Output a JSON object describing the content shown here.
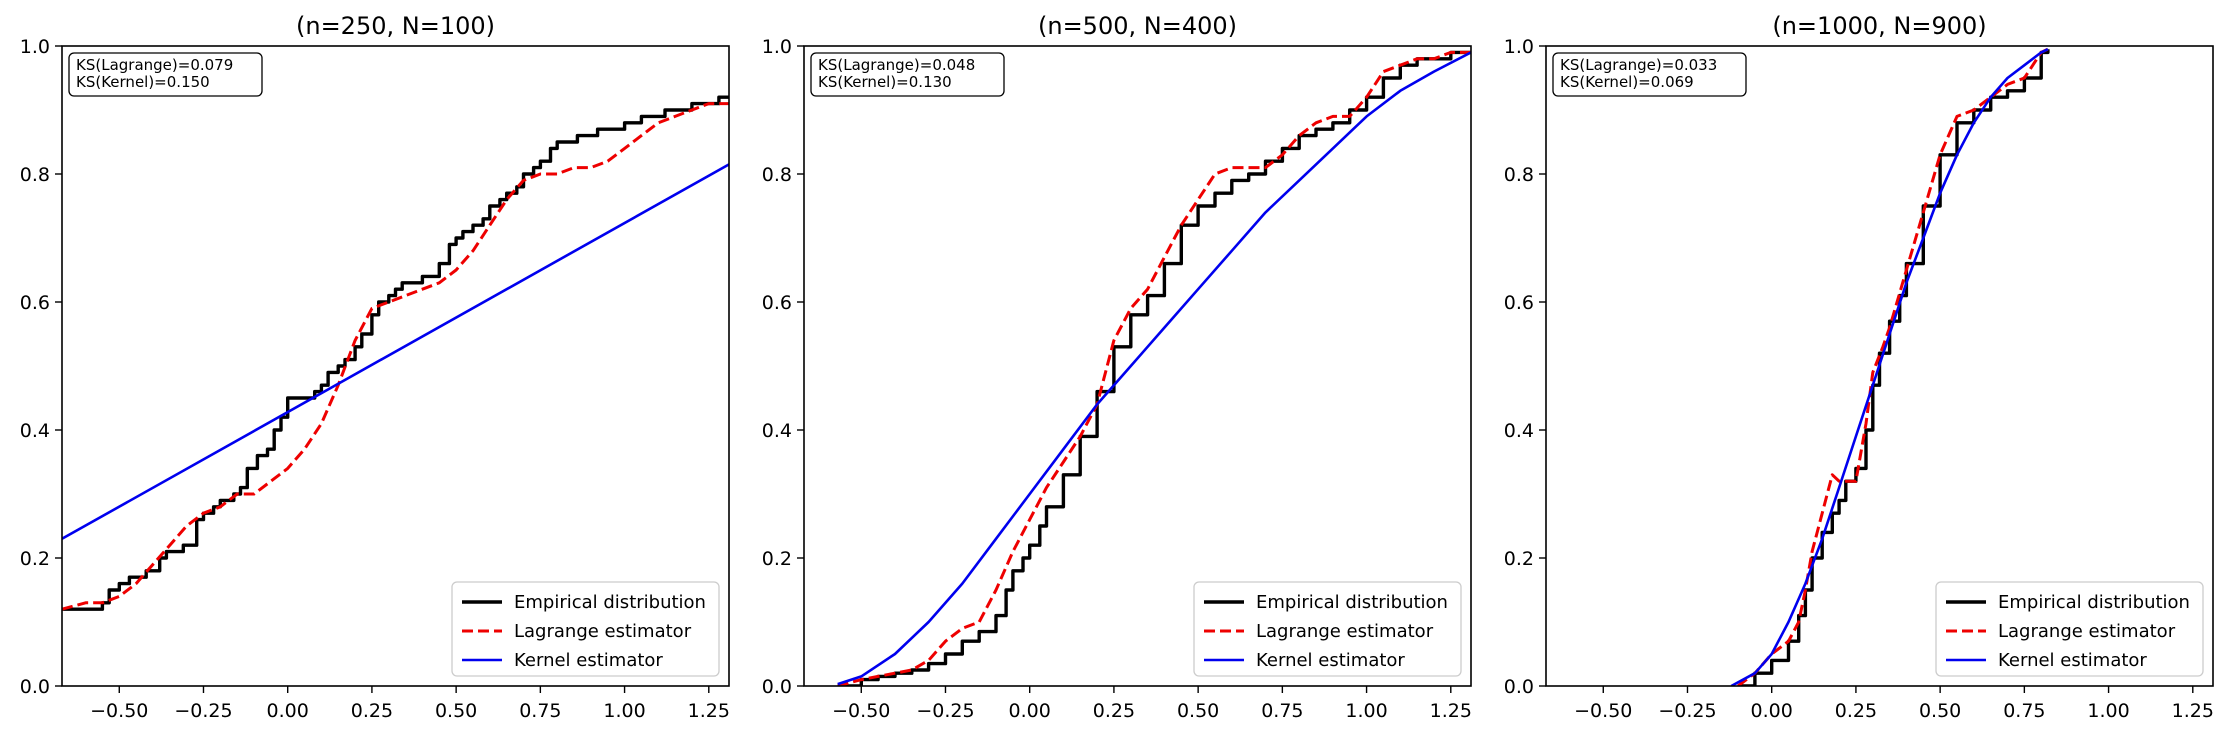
{
  "figure": {
    "panels": 3
  },
  "chart_data": [
    {
      "type": "line",
      "title": "(n=250, N=100)",
      "xlim": [
        -0.67,
        1.31
      ],
      "ylim": [
        0.0,
        1.0
      ],
      "xticks": [
        -0.5,
        -0.25,
        0.0,
        0.25,
        0.5,
        0.75,
        1.0,
        1.25
      ],
      "xtick_labels": [
        "−0.50",
        "−0.25",
        "0.00",
        "0.25",
        "0.50",
        "0.75",
        "1.00",
        "1.25"
      ],
      "yticks": [
        0.0,
        0.2,
        0.4,
        0.6,
        0.8,
        1.0
      ],
      "ytick_labels": [
        "0.0",
        "0.2",
        "0.4",
        "0.6",
        "0.8",
        "1.0"
      ],
      "ks": [
        "KS(Lagrange)=0.079",
        "KS(Kernel)=0.150"
      ],
      "legend_position": "lower-right",
      "series": [
        {
          "name": "Empirical distribution",
          "style": "step",
          "color": "#000000",
          "x": [
            -0.67,
            -0.55,
            -0.53,
            -0.5,
            -0.47,
            -0.45,
            -0.42,
            -0.38,
            -0.36,
            -0.34,
            -0.31,
            -0.27,
            -0.25,
            -0.22,
            -0.2,
            -0.16,
            -0.14,
            -0.12,
            -0.09,
            -0.06,
            -0.04,
            -0.02,
            0.0,
            0.02,
            0.05,
            0.08,
            0.1,
            0.12,
            0.15,
            0.17,
            0.2,
            0.22,
            0.25,
            0.27,
            0.3,
            0.32,
            0.34,
            0.36,
            0.4,
            0.45,
            0.48,
            0.5,
            0.52,
            0.55,
            0.58,
            0.6,
            0.63,
            0.65,
            0.68,
            0.7,
            0.73,
            0.75,
            0.78,
            0.8,
            0.83,
            0.86,
            0.88,
            0.92,
            0.95,
            1.0,
            1.02,
            1.05,
            1.08,
            1.12,
            1.15,
            1.2,
            1.22,
            1.25,
            1.28,
            1.31
          ],
          "y": [
            0.12,
            0.13,
            0.15,
            0.16,
            0.17,
            0.17,
            0.18,
            0.2,
            0.21,
            0.21,
            0.22,
            0.26,
            0.27,
            0.28,
            0.29,
            0.3,
            0.31,
            0.34,
            0.36,
            0.37,
            0.4,
            0.42,
            0.45,
            0.45,
            0.45,
            0.46,
            0.47,
            0.49,
            0.5,
            0.51,
            0.53,
            0.55,
            0.58,
            0.6,
            0.61,
            0.62,
            0.63,
            0.63,
            0.64,
            0.66,
            0.69,
            0.7,
            0.71,
            0.72,
            0.73,
            0.75,
            0.76,
            0.77,
            0.78,
            0.8,
            0.81,
            0.82,
            0.84,
            0.85,
            0.85,
            0.86,
            0.86,
            0.87,
            0.87,
            0.88,
            0.88,
            0.89,
            0.89,
            0.9,
            0.9,
            0.91,
            0.91,
            0.91,
            0.92,
            0.92
          ]
        },
        {
          "name": "Lagrange estimator",
          "style": "dashed",
          "color": "#ee0000",
          "x": [
            -0.67,
            -0.6,
            -0.55,
            -0.5,
            -0.45,
            -0.4,
            -0.35,
            -0.3,
            -0.25,
            -0.2,
            -0.15,
            -0.1,
            -0.05,
            0.0,
            0.05,
            0.1,
            0.15,
            0.2,
            0.25,
            0.3,
            0.35,
            0.4,
            0.45,
            0.5,
            0.55,
            0.6,
            0.65,
            0.7,
            0.75,
            0.8,
            0.85,
            0.9,
            0.95,
            1.0,
            1.05,
            1.1,
            1.15,
            1.2,
            1.25,
            1.31
          ],
          "y": [
            0.12,
            0.13,
            0.13,
            0.14,
            0.16,
            0.19,
            0.22,
            0.25,
            0.27,
            0.28,
            0.3,
            0.3,
            0.32,
            0.34,
            0.37,
            0.41,
            0.47,
            0.54,
            0.59,
            0.6,
            0.61,
            0.62,
            0.63,
            0.65,
            0.68,
            0.72,
            0.76,
            0.79,
            0.8,
            0.8,
            0.81,
            0.81,
            0.82,
            0.84,
            0.86,
            0.88,
            0.89,
            0.9,
            0.91,
            0.91
          ]
        },
        {
          "name": "Kernel estimator",
          "style": "solid",
          "color": "#0000ee",
          "x": [
            -0.67,
            1.31
          ],
          "y": [
            0.23,
            0.815
          ]
        }
      ]
    },
    {
      "type": "line",
      "title": "(n=500, N=400)",
      "xlim": [
        -0.67,
        1.31
      ],
      "ylim": [
        0.0,
        1.0
      ],
      "xticks": [
        -0.5,
        -0.25,
        0.0,
        0.25,
        0.5,
        0.75,
        1.0,
        1.25
      ],
      "xtick_labels": [
        "−0.50",
        "−0.25",
        "0.00",
        "0.25",
        "0.50",
        "0.75",
        "1.00",
        "1.25"
      ],
      "yticks": [
        0.0,
        0.2,
        0.4,
        0.6,
        0.8,
        1.0
      ],
      "ytick_labels": [
        "0.0",
        "0.2",
        "0.4",
        "0.6",
        "0.8",
        "1.0"
      ],
      "ks": [
        "KS(Lagrange)=0.048",
        "KS(Kernel)=0.130"
      ],
      "legend_position": "lower-right",
      "series": [
        {
          "name": "Empirical distribution",
          "style": "step",
          "color": "#000000",
          "x": [
            -0.57,
            -0.5,
            -0.45,
            -0.4,
            -0.35,
            -0.3,
            -0.25,
            -0.2,
            -0.15,
            -0.1,
            -0.07,
            -0.05,
            -0.02,
            0.0,
            0.03,
            0.05,
            0.1,
            0.15,
            0.2,
            0.25,
            0.3,
            0.35,
            0.4,
            0.45,
            0.5,
            0.55,
            0.6,
            0.65,
            0.7,
            0.75,
            0.8,
            0.85,
            0.9,
            0.95,
            1.0,
            1.05,
            1.1,
            1.15,
            1.2,
            1.25,
            1.31
          ],
          "y": [
            0.0,
            0.01,
            0.015,
            0.02,
            0.025,
            0.035,
            0.05,
            0.07,
            0.085,
            0.11,
            0.15,
            0.18,
            0.2,
            0.22,
            0.25,
            0.28,
            0.33,
            0.39,
            0.46,
            0.53,
            0.58,
            0.61,
            0.66,
            0.72,
            0.75,
            0.77,
            0.79,
            0.8,
            0.82,
            0.84,
            0.86,
            0.87,
            0.88,
            0.9,
            0.92,
            0.95,
            0.97,
            0.98,
            0.98,
            0.99,
            0.99
          ]
        },
        {
          "name": "Lagrange estimator",
          "style": "dashed",
          "color": "#ee0000",
          "x": [
            -0.57,
            -0.5,
            -0.45,
            -0.4,
            -0.35,
            -0.3,
            -0.25,
            -0.2,
            -0.15,
            -0.1,
            -0.05,
            0.0,
            0.05,
            0.1,
            0.15,
            0.2,
            0.25,
            0.3,
            0.35,
            0.4,
            0.45,
            0.5,
            0.55,
            0.6,
            0.65,
            0.7,
            0.75,
            0.8,
            0.85,
            0.9,
            0.95,
            1.0,
            1.05,
            1.1,
            1.15,
            1.2,
            1.25,
            1.31
          ],
          "y": [
            0.0,
            0.01,
            0.015,
            0.02,
            0.025,
            0.04,
            0.07,
            0.09,
            0.1,
            0.15,
            0.21,
            0.26,
            0.31,
            0.35,
            0.39,
            0.44,
            0.54,
            0.59,
            0.62,
            0.67,
            0.72,
            0.76,
            0.8,
            0.81,
            0.81,
            0.81,
            0.83,
            0.86,
            0.88,
            0.89,
            0.89,
            0.92,
            0.96,
            0.97,
            0.98,
            0.98,
            0.99,
            0.99
          ]
        },
        {
          "name": "Kernel estimator",
          "style": "solid",
          "color": "#0000ee",
          "x": [
            -0.57,
            -0.5,
            -0.4,
            -0.3,
            -0.2,
            -0.1,
            0.0,
            0.1,
            0.2,
            0.3,
            0.4,
            0.5,
            0.6,
            0.7,
            0.8,
            0.9,
            1.0,
            1.1,
            1.2,
            1.31
          ],
          "y": [
            0.003,
            0.015,
            0.05,
            0.1,
            0.16,
            0.23,
            0.3,
            0.37,
            0.44,
            0.5,
            0.56,
            0.62,
            0.68,
            0.74,
            0.79,
            0.84,
            0.89,
            0.93,
            0.96,
            0.99
          ]
        }
      ]
    },
    {
      "type": "line",
      "title": "(n=1000, N=900)",
      "xlim": [
        -0.67,
        1.31
      ],
      "ylim": [
        0.0,
        1.0
      ],
      "xticks": [
        -0.5,
        -0.25,
        0.0,
        0.25,
        0.5,
        0.75,
        1.0,
        1.25
      ],
      "xtick_labels": [
        "−0.50",
        "−0.25",
        "0.00",
        "0.25",
        "0.50",
        "0.75",
        "1.00",
        "1.25"
      ],
      "yticks": [
        0.0,
        0.2,
        0.4,
        0.6,
        0.8,
        1.0
      ],
      "ytick_labels": [
        "0.0",
        "0.2",
        "0.4",
        "0.6",
        "0.8",
        "1.0"
      ],
      "ks": [
        "KS(Lagrange)=0.033",
        "KS(Kernel)=0.069"
      ],
      "legend_position": "lower-right",
      "series": [
        {
          "name": "Empirical distribution",
          "style": "step",
          "color": "#000000",
          "x": [
            -0.1,
            -0.05,
            0.0,
            0.05,
            0.08,
            0.1,
            0.12,
            0.15,
            0.18,
            0.2,
            0.22,
            0.25,
            0.28,
            0.3,
            0.32,
            0.35,
            0.38,
            0.4,
            0.45,
            0.5,
            0.55,
            0.6,
            0.65,
            0.7,
            0.75,
            0.8,
            0.82
          ],
          "y": [
            0.0,
            0.02,
            0.04,
            0.07,
            0.11,
            0.15,
            0.2,
            0.24,
            0.27,
            0.29,
            0.32,
            0.34,
            0.4,
            0.47,
            0.52,
            0.57,
            0.61,
            0.66,
            0.75,
            0.83,
            0.88,
            0.9,
            0.92,
            0.93,
            0.95,
            0.99,
            0.995
          ]
        },
        {
          "name": "Lagrange estimator",
          "style": "dashed",
          "color": "#ee0000",
          "x": [
            -0.1,
            -0.05,
            0.0,
            0.05,
            0.08,
            0.1,
            0.12,
            0.15,
            0.18,
            0.2,
            0.25,
            0.28,
            0.3,
            0.33,
            0.35,
            0.4,
            0.45,
            0.5,
            0.55,
            0.6,
            0.65,
            0.7,
            0.75,
            0.8,
            0.82
          ],
          "y": [
            0.0,
            0.02,
            0.05,
            0.07,
            0.1,
            0.15,
            0.21,
            0.27,
            0.33,
            0.32,
            0.32,
            0.41,
            0.49,
            0.53,
            0.56,
            0.65,
            0.74,
            0.83,
            0.89,
            0.9,
            0.92,
            0.94,
            0.95,
            0.99,
            0.995
          ]
        },
        {
          "name": "Kernel estimator",
          "style": "solid",
          "color": "#0000ee",
          "x": [
            -0.12,
            -0.05,
            0.0,
            0.05,
            0.1,
            0.15,
            0.2,
            0.25,
            0.3,
            0.35,
            0.4,
            0.45,
            0.5,
            0.55,
            0.6,
            0.65,
            0.7,
            0.75,
            0.8,
            0.82
          ],
          "y": [
            0.0,
            0.02,
            0.05,
            0.1,
            0.16,
            0.23,
            0.31,
            0.39,
            0.47,
            0.55,
            0.63,
            0.7,
            0.77,
            0.83,
            0.88,
            0.92,
            0.95,
            0.97,
            0.99,
            0.995
          ]
        }
      ]
    }
  ]
}
